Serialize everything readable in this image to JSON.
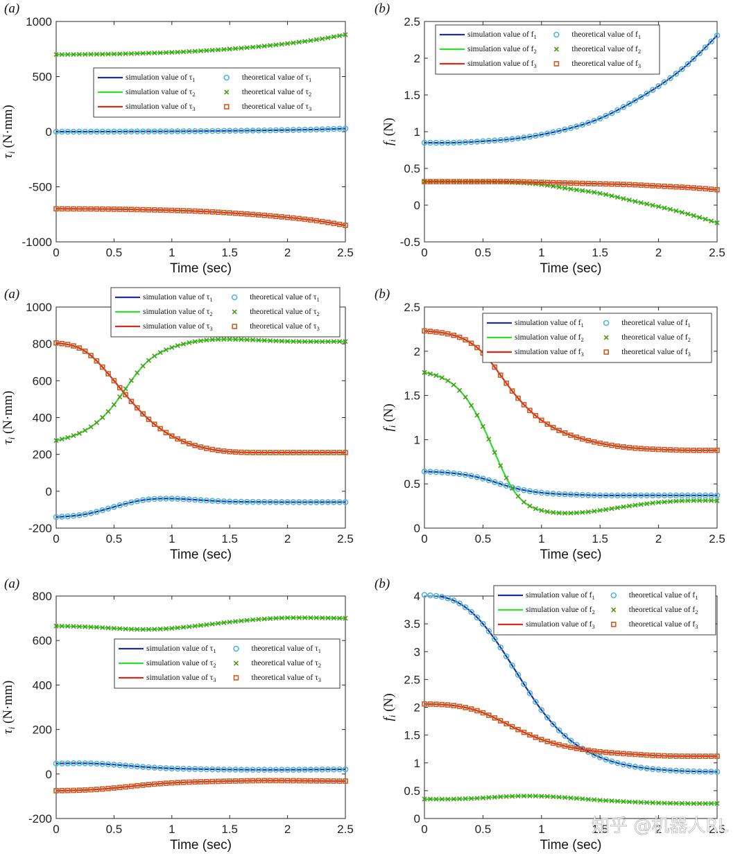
{
  "watermark": "知乎 @机器人RL",
  "chart_data": [
    {
      "type": "line",
      "panel_label": "(a)",
      "xlabel": "Time (sec)",
      "ylabel": "τi (N·mm)",
      "xlim": [
        0,
        2.5
      ],
      "ylim": [
        -1000,
        1000
      ],
      "xticks": [
        "0",
        "0.5",
        "1",
        "1.5",
        "2",
        "2.5"
      ],
      "yticks": [
        "1000",
        "500",
        "0",
        "-500",
        "-1000"
      ],
      "legend": [
        "simulation value of τ1",
        "theoretical value of τ1",
        "simulation value of τ2",
        "theoretical value of τ2",
        "simulation value of τ3",
        "theoretical value of τ3"
      ],
      "x": [
        0,
        0.25,
        0.5,
        0.75,
        1.0,
        1.25,
        1.5,
        1.75,
        2.0,
        2.25,
        2.5
      ],
      "series": [
        {
          "name": "τ1",
          "values": [
            0,
            0,
            1,
            2,
            3,
            5,
            8,
            11,
            15,
            20,
            28
          ]
        },
        {
          "name": "τ2",
          "values": [
            700,
            702,
            705,
            711,
            720,
            733,
            750,
            772,
            800,
            835,
            880
          ]
        },
        {
          "name": "τ3",
          "values": [
            -700,
            -701,
            -703,
            -708,
            -714,
            -723,
            -737,
            -755,
            -778,
            -808,
            -850
          ]
        }
      ]
    },
    {
      "type": "line",
      "panel_label": "(b)",
      "xlabel": "Time (sec)",
      "ylabel": "fi (N)",
      "xlim": [
        0,
        2.5
      ],
      "ylim": [
        -0.5,
        2.5
      ],
      "xticks": [
        "0",
        "0.5",
        "1",
        "1.5",
        "2",
        "2.5"
      ],
      "yticks": [
        "2.5",
        "2",
        "1.5",
        "1",
        "0.5",
        "0",
        "-0.5"
      ],
      "legend": [
        "simulation value of f1",
        "theoretical value of f1",
        "simulation value of f2",
        "theoretical value of f2",
        "simulation value of f3",
        "theoretical value of f3"
      ],
      "x": [
        0,
        0.25,
        0.5,
        0.75,
        1.0,
        1.25,
        1.5,
        1.75,
        2.0,
        2.25,
        2.5
      ],
      "series": [
        {
          "name": "f1",
          "values": [
            0.85,
            0.85,
            0.87,
            0.9,
            0.96,
            1.05,
            1.18,
            1.38,
            1.62,
            1.92,
            2.31
          ]
        },
        {
          "name": "f2",
          "values": [
            0.32,
            0.32,
            0.32,
            0.31,
            0.28,
            0.22,
            0.16,
            0.07,
            -0.02,
            -0.12,
            -0.24
          ]
        },
        {
          "name": "f3",
          "values": [
            0.32,
            0.32,
            0.32,
            0.32,
            0.31,
            0.3,
            0.29,
            0.28,
            0.26,
            0.24,
            0.21
          ]
        }
      ]
    },
    {
      "type": "line",
      "panel_label": "(a)",
      "xlabel": "Time (sec)",
      "ylabel": "τi (N·mm)",
      "xlim": [
        0,
        2.5
      ],
      "ylim": [
        -200,
        1000
      ],
      "xticks": [
        "0",
        "0.5",
        "1",
        "1.5",
        "2",
        "2.5"
      ],
      "yticks": [
        "1000",
        "800",
        "600",
        "400",
        "200",
        "0",
        "-200"
      ],
      "legend": [
        "simulation value of τ1",
        "theoretical value of τ1",
        "simulation value of τ2",
        "theoretical value of τ2",
        "simulation value of τ3",
        "theoretical value of τ3"
      ],
      "x": [
        0,
        0.25,
        0.5,
        0.75,
        1.0,
        1.25,
        1.5,
        1.75,
        2.0,
        2.25,
        2.5
      ],
      "series": [
        {
          "name": "τ1",
          "values": [
            -140,
            -125,
            -85,
            -48,
            -40,
            -48,
            -56,
            -58,
            -59,
            -59,
            -59
          ]
        },
        {
          "name": "τ2",
          "values": [
            275,
            330,
            470,
            680,
            780,
            817,
            825,
            820,
            814,
            812,
            813
          ]
        },
        {
          "name": "τ3",
          "values": [
            805,
            760,
            600,
            420,
            300,
            240,
            215,
            210,
            210,
            210,
            210
          ]
        }
      ]
    },
    {
      "type": "line",
      "panel_label": "(b)",
      "xlabel": "Time (sec)",
      "ylabel": "fi (N)",
      "xlim": [
        0,
        2.5
      ],
      "ylim": [
        0,
        2.5
      ],
      "xticks": [
        "0",
        "0.5",
        "1",
        "1.5",
        "2",
        "2.5"
      ],
      "yticks": [
        "2.5",
        "2",
        "1.5",
        "1",
        "0.5",
        "0"
      ],
      "legend": [
        "simulation value of f1",
        "theoretical value of f1",
        "simulation value of f2",
        "theoretical value of f2",
        "simulation value of f3",
        "theoretical value of f3"
      ],
      "x": [
        0,
        0.25,
        0.5,
        0.75,
        1.0,
        1.25,
        1.5,
        1.75,
        2.0,
        2.25,
        2.5
      ],
      "series": [
        {
          "name": "f1",
          "values": [
            0.64,
            0.62,
            0.56,
            0.46,
            0.4,
            0.38,
            0.37,
            0.37,
            0.37,
            0.37,
            0.37
          ]
        },
        {
          "name": "f2",
          "values": [
            1.76,
            1.62,
            1.15,
            0.45,
            0.2,
            0.17,
            0.2,
            0.25,
            0.29,
            0.31,
            0.31
          ]
        },
        {
          "name": "f3",
          "values": [
            2.23,
            2.18,
            1.98,
            1.55,
            1.22,
            1.05,
            0.96,
            0.91,
            0.89,
            0.88,
            0.88
          ]
        }
      ]
    },
    {
      "type": "line",
      "panel_label": "(a)",
      "xlabel": "Time (sec)",
      "ylabel": "τi (N·mm)",
      "xlim": [
        0,
        2.5
      ],
      "ylim": [
        -200,
        800
      ],
      "xticks": [
        "0",
        "0.5",
        "1",
        "1.5",
        "2",
        "2.5"
      ],
      "yticks": [
        "800",
        "600",
        "400",
        "200",
        "0",
        "-200"
      ],
      "legend": [
        "simulation value of τ1",
        "theoretical value of τ1",
        "simulation value of τ2",
        "theoretical value of τ2",
        "simulation value of τ3",
        "theoretical value of τ3"
      ],
      "x": [
        0,
        0.25,
        0.5,
        0.75,
        1.0,
        1.25,
        1.5,
        1.75,
        2.0,
        2.25,
        2.5
      ],
      "series": [
        {
          "name": "τ1",
          "values": [
            47,
            48,
            42,
            32,
            25,
            22,
            20,
            19,
            19,
            20,
            21
          ]
        },
        {
          "name": "τ2",
          "values": [
            665,
            662,
            655,
            650,
            655,
            668,
            683,
            695,
            702,
            702,
            700
          ]
        },
        {
          "name": "τ3",
          "values": [
            -75,
            -72,
            -63,
            -50,
            -40,
            -35,
            -32,
            -30,
            -30,
            -31,
            -32
          ]
        }
      ]
    },
    {
      "type": "line",
      "panel_label": "(b)",
      "xlabel": "Time (sec)",
      "ylabel": "fi (N)",
      "xlim": [
        0,
        2.5
      ],
      "ylim": [
        0,
        4
      ],
      "xticks": [
        "0",
        "0.5",
        "1",
        "1.5",
        "2",
        "2.5"
      ],
      "yticks": [
        "4",
        "3.5",
        "3",
        "2.5",
        "2",
        "1.5",
        "1",
        "0.5",
        "0"
      ],
      "legend": [
        "simulation value of f1",
        "theoretical value of f1",
        "simulation value of f2",
        "theoretical value of f2",
        "simulation value of f3",
        "theoretical value of f3"
      ],
      "x": [
        0,
        0.25,
        0.5,
        0.75,
        1.0,
        1.25,
        1.5,
        1.75,
        2.0,
        2.25,
        2.5
      ],
      "series": [
        {
          "name": "f1",
          "values": [
            4.02,
            3.92,
            3.5,
            2.75,
            1.95,
            1.4,
            1.1,
            0.95,
            0.88,
            0.85,
            0.84
          ]
        },
        {
          "name": "f2",
          "values": [
            0.35,
            0.35,
            0.37,
            0.4,
            0.4,
            0.37,
            0.33,
            0.3,
            0.28,
            0.27,
            0.27
          ]
        },
        {
          "name": "f3",
          "values": [
            2.06,
            2.03,
            1.9,
            1.65,
            1.42,
            1.28,
            1.2,
            1.16,
            1.13,
            1.12,
            1.12
          ]
        }
      ]
    }
  ]
}
